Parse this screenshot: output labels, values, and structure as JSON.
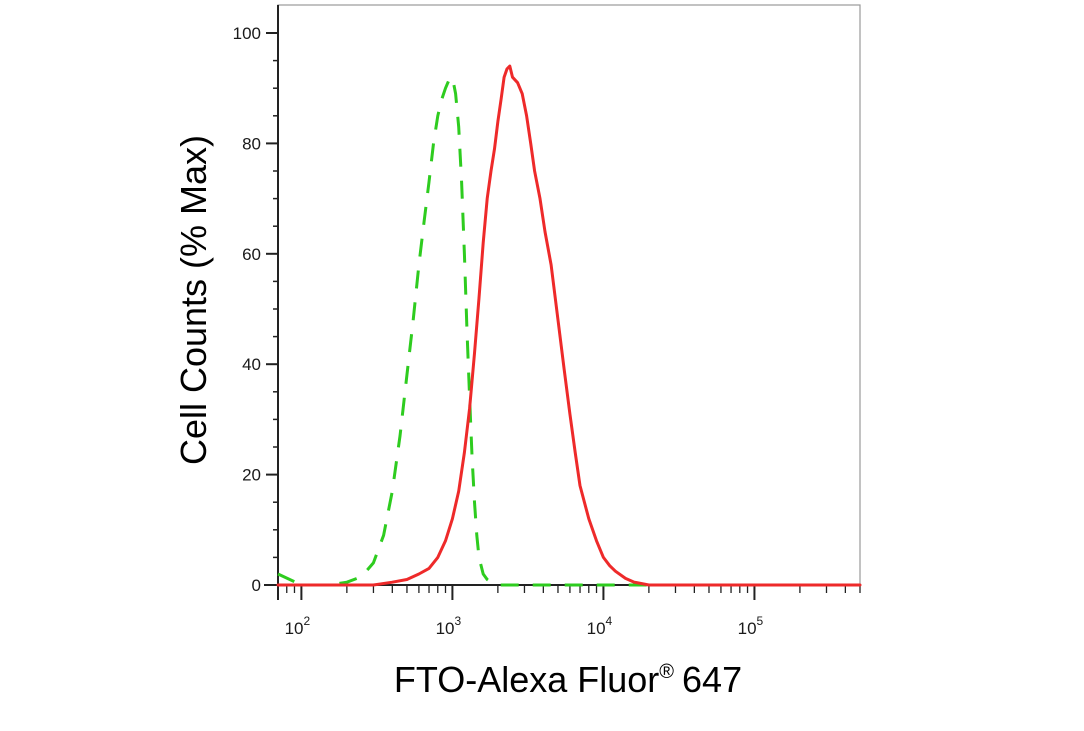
{
  "chart_data": {
    "type": "line",
    "title": "",
    "xlabel": "FTO-Alexa Fluor",
    "xlabel_mark": "®",
    "xlabel_suffix": "647",
    "ylabel": "Cell Counts (% Max)",
    "x_scale": "log",
    "xlim": [
      70,
      500000
    ],
    "ylim": [
      0,
      100
    ],
    "y_ticks": [
      0,
      20,
      40,
      60,
      80,
      100
    ],
    "y_tick_labels": [
      "0",
      "20",
      "40",
      "60",
      "80",
      "100"
    ],
    "x_ticks": [
      100,
      1000,
      10000,
      100000
    ],
    "x_tick_labels": [
      {
        "base": "10",
        "exp": "2"
      },
      {
        "base": "10",
        "exp": "3"
      },
      {
        "base": "10",
        "exp": "4"
      },
      {
        "base": "10",
        "exp": "5"
      }
    ],
    "grid": false,
    "legend": "none",
    "series": [
      {
        "color": "#2ecc1f",
        "style": "dashed",
        "x": [
          70,
          100,
          150,
          200,
          250,
          300,
          350,
          400,
          450,
          500,
          550,
          600,
          650,
          700,
          750,
          800,
          850,
          900,
          950,
          1000,
          1050,
          1100,
          1150,
          1200,
          1250,
          1300,
          1350,
          1400,
          1450,
          1500,
          1600,
          1700,
          1800,
          2000,
          3000,
          5000,
          10000,
          500000
        ],
        "y": [
          2,
          0,
          0,
          0.5,
          1.5,
          4,
          9,
          17,
          27,
          38,
          48,
          58,
          66,
          73,
          80,
          85,
          88,
          90,
          91.5,
          92,
          89,
          83,
          73,
          60,
          46,
          34,
          23,
          15,
          9,
          5,
          2,
          1,
          0.5,
          0,
          0,
          0,
          0,
          0
        ]
      },
      {
        "color": "#ee2a2a",
        "style": "solid",
        "x": [
          70,
          200,
          300,
          400,
          500,
          600,
          700,
          800,
          900,
          1000,
          1100,
          1200,
          1300,
          1400,
          1500,
          1600,
          1700,
          1800,
          1900,
          2000,
          2100,
          2200,
          2300,
          2400,
          2500,
          2700,
          2900,
          3100,
          3300,
          3500,
          3800,
          4100,
          4500,
          5000,
          5500,
          6000,
          6500,
          7000,
          8000,
          9000,
          10000,
          11000,
          12000,
          14000,
          16000,
          20000,
          25000,
          50000,
          500000
        ],
        "y": [
          0,
          0,
          0,
          0.5,
          1,
          2,
          3,
          5,
          8,
          12,
          17,
          24,
          32,
          42,
          52,
          62,
          70,
          75,
          79,
          84,
          88,
          92,
          93.5,
          94,
          92,
          91,
          89,
          85,
          80,
          75,
          70,
          64,
          58,
          48,
          39,
          31,
          24,
          18,
          12,
          8,
          5,
          3.5,
          2.5,
          1.2,
          0.5,
          0,
          0,
          0,
          0
        ]
      }
    ]
  }
}
